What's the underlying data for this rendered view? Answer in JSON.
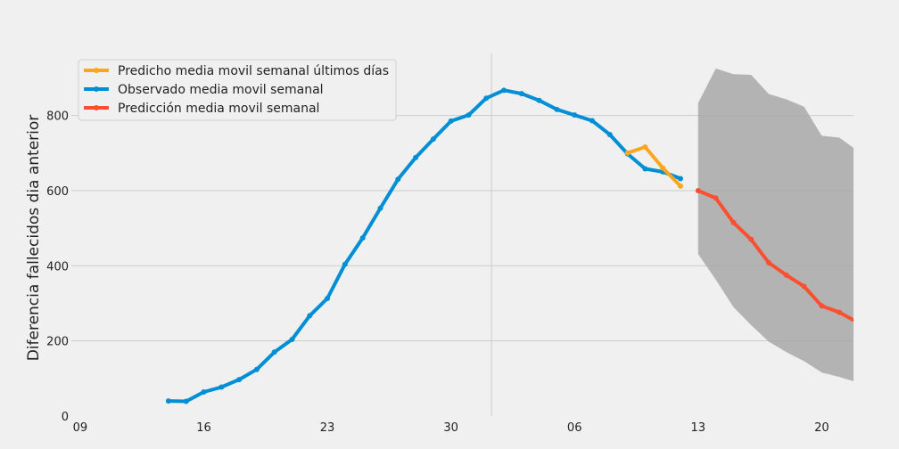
{
  "chart_data": {
    "type": "line",
    "title": "",
    "xlabel": "",
    "ylabel": "Diferencia fallecidos dia anterior",
    "xlim": [
      -0.5,
      43.8
    ],
    "ylim": [
      0,
      965
    ],
    "x_ticks": [
      {
        "x": 0,
        "label": "09"
      },
      {
        "x": 7,
        "label": "16"
      },
      {
        "x": 14,
        "label": "23"
      },
      {
        "x": 21,
        "label": "30"
      },
      {
        "x": 28,
        "label": "06"
      },
      {
        "x": 35,
        "label": "13"
      },
      {
        "x": 42,
        "label": "20"
      }
    ],
    "y_ticks": [
      0,
      200,
      400,
      600,
      800
    ],
    "grid": true,
    "legend_position": "upper-left",
    "vertical_marker_x": 23.3,
    "series": [
      {
        "name": "Predicho media movil semanal últimos días",
        "color": "#fca61f",
        "x": [
          31,
          32,
          33,
          34
        ],
        "values": [
          700,
          716,
          660,
          612
        ]
      },
      {
        "name": "Observado media movil semanal",
        "color": "#008fd5",
        "x": [
          5,
          6,
          7,
          8,
          9,
          10,
          11,
          12,
          13,
          14,
          15,
          16,
          17,
          18,
          19,
          20,
          21,
          22,
          23,
          24,
          25,
          26,
          27,
          28,
          29,
          30,
          31,
          32,
          33,
          34
        ],
        "values": [
          40,
          39,
          64,
          77,
          97,
          124,
          170,
          204,
          267,
          313,
          404,
          474,
          553,
          630,
          688,
          737,
          785,
          801,
          846,
          867,
          858,
          840,
          816,
          801,
          786,
          749,
          698,
          658,
          650,
          632
        ]
      },
      {
        "name": "Predicción media movil semanal",
        "color": "#fc4f30",
        "x": [
          35,
          36,
          37,
          38,
          39,
          40,
          41,
          42,
          43,
          44
        ],
        "values": [
          600,
          580,
          515,
          470,
          408,
          375,
          345,
          293,
          276,
          250
        ]
      }
    ],
    "confidence_band": {
      "color": "#a8a8a8",
      "x": [
        35,
        36,
        37,
        38,
        39,
        40,
        41,
        42,
        43,
        44
      ],
      "upper": [
        833,
        925,
        910,
        908,
        857,
        843,
        823,
        746,
        741,
        707
      ],
      "lower": [
        431,
        363,
        290,
        242,
        198,
        170,
        146,
        116,
        104,
        90
      ]
    }
  }
}
